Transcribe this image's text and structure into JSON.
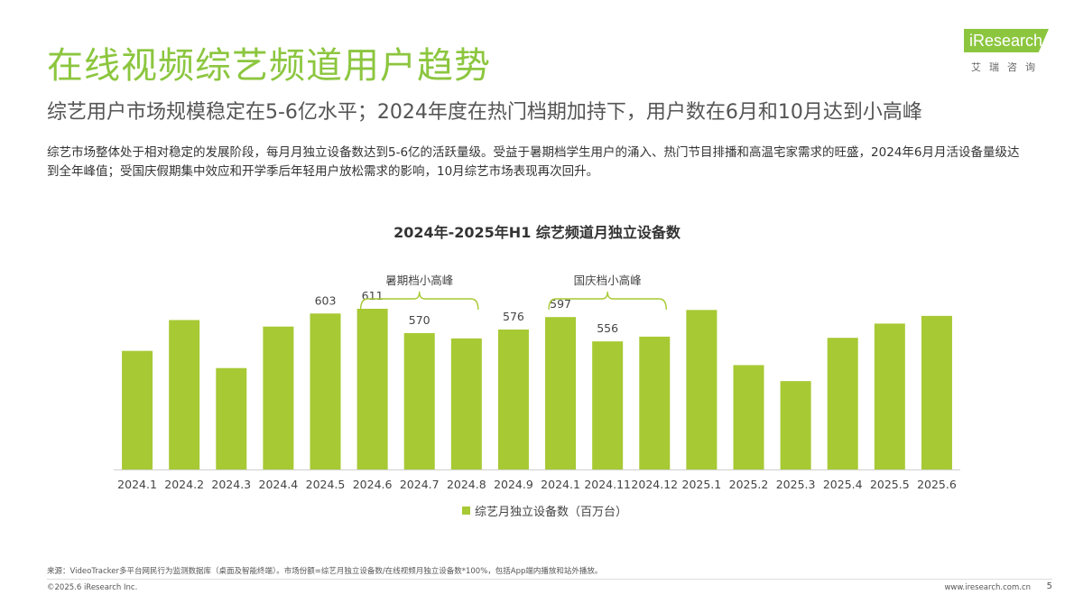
{
  "header": {
    "title": "在线视频综艺频道用户趋势",
    "subtitle": "综艺用户市场规模稳定在5-6亿水平；2024年度在热门档期加持下，用户数在6月和10月达到小高峰",
    "description": "综艺市场整体处于相对稳定的发展阶段，每月月独立设备数达到5-6亿的活跃量级。受益于暑期档学生用户的涌入、热门节目排播和高温宅家需求的旺盛，2024年6月月活设备量级达到全年峰值；受国庆假期集中效应和开学季后年轻用户放松需求的影响，10月综艺市场表现再次回升。"
  },
  "logo": {
    "text": "iResearch",
    "sub": "艾瑞咨询"
  },
  "chart_data": {
    "type": "bar",
    "title": "2024年-2025年H1 综艺频道月独立设备数",
    "categories": [
      "2024.1",
      "2024.2",
      "2024.3",
      "2024.4",
      "2024.5",
      "2024.6",
      "2024.7",
      "2024.8",
      "2024.9",
      "2024.1",
      "2024.11",
      "2024.12",
      "2025.1",
      "2025.2",
      "2025.3",
      "2025.4",
      "2025.5",
      "2025.6"
    ],
    "series": [
      {
        "name": "综艺月独立设备数（百万台）",
        "values": [
          540,
          592,
          511,
          581,
          603,
          611,
          570,
          561,
          576,
          597,
          556,
          564,
          609,
          516,
          489,
          562,
          586,
          599
        ],
        "labels": [
          "",
          "",
          "",
          "",
          "603",
          "611",
          "570",
          "",
          "576",
          "597",
          "556",
          "",
          "",
          "",
          "",
          "",
          "",
          ""
        ]
      }
    ],
    "annotations": [
      {
        "text": "暑期档小高峰",
        "from_index": 5,
        "to_index": 7
      },
      {
        "text": "国庆档小高峰",
        "from_index": 9,
        "to_index": 11
      }
    ],
    "bar_color": "#a7c934",
    "legend": "bottom"
  },
  "footer": {
    "source": "来源：VideoTracker多平台网民行为监测数据库（桌面及智能终端）。市场份额=综艺月独立设备数/在线视频月独立设备数*100%，包括App端内播放和站外播放。",
    "copyright": "©2025.6 iResearch Inc.",
    "site": "www.iresearch.com.cn",
    "page": "5"
  }
}
